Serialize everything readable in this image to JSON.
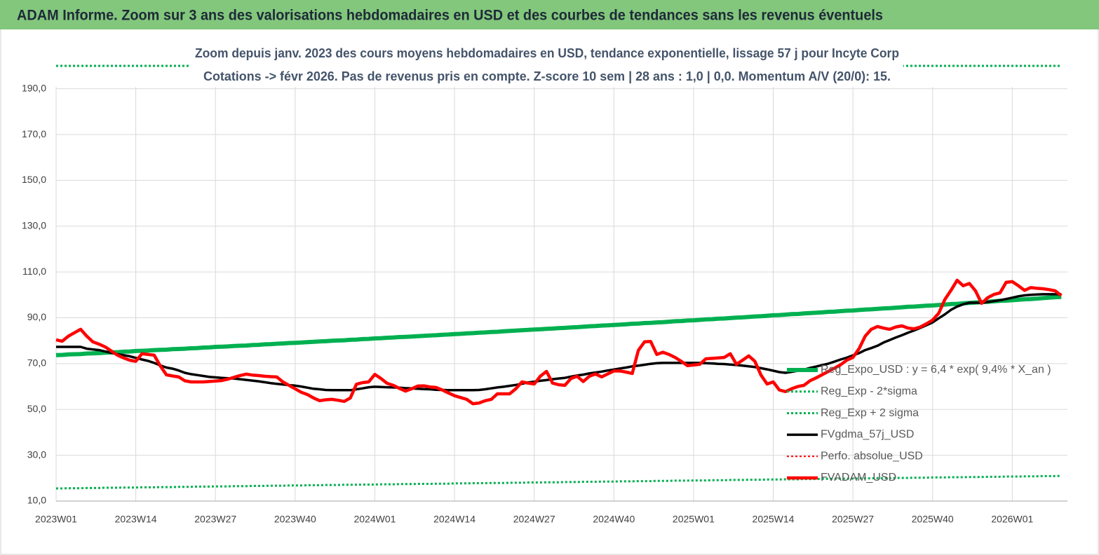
{
  "chart_data": {
    "type": "line",
    "title": "ADAM Informe. Zoom sur 3 ans des valorisations hebdomadaires en USD et des courbes de tendances sans les revenus éventuels",
    "subtitle": [
      "Zoom depuis janv. 2023 des cours moyens hebdomadaires en USD, tendance exponentielle, lissage 57 j pour Incyte Corp",
      "Cotations -> févr 2026.  Pas de revenus pris en compte. Z-score 10 sem  | 28 ans : 1,0 | 0,0. Momentum A/V (20/0): 15."
    ],
    "ylim": [
      10,
      200
    ],
    "yticks": [
      {
        "value": 10,
        "label": "10,0"
      },
      {
        "value": 30,
        "label": "30,0"
      },
      {
        "value": 50,
        "label": "50,0"
      },
      {
        "value": 70,
        "label": "70,0"
      },
      {
        "value": 90,
        "label": "90,0"
      },
      {
        "value": 110,
        "label": "110,0"
      },
      {
        "value": 130,
        "label": "130,0"
      },
      {
        "value": 150,
        "label": "150,0"
      },
      {
        "value": 170,
        "label": "170,0"
      },
      {
        "value": 190,
        "label": "190,0"
      }
    ],
    "grid": true,
    "legend": "lower right",
    "categories": [
      "2023W01",
      null,
      null,
      null,
      null,
      null,
      null,
      null,
      null,
      null,
      null,
      null,
      null,
      "2023W14",
      null,
      null,
      null,
      null,
      null,
      null,
      null,
      null,
      null,
      null,
      null,
      null,
      "2023W27",
      null,
      null,
      null,
      null,
      null,
      null,
      null,
      null,
      null,
      null,
      null,
      null,
      "2023W40",
      null,
      null,
      null,
      null,
      null,
      null,
      null,
      null,
      null,
      null,
      null,
      null,
      "2024W01",
      null,
      null,
      null,
      null,
      null,
      null,
      null,
      null,
      null,
      null,
      null,
      null,
      "2024W14",
      null,
      null,
      null,
      null,
      null,
      null,
      null,
      null,
      null,
      null,
      null,
      null,
      "2024W27",
      null,
      null,
      null,
      null,
      null,
      null,
      null,
      null,
      null,
      null,
      null,
      null,
      "2024W40",
      null,
      null,
      null,
      null,
      null,
      null,
      null,
      null,
      null,
      null,
      null,
      null,
      "2025W01",
      null,
      null,
      null,
      null,
      null,
      null,
      null,
      null,
      null,
      null,
      null,
      null,
      "2025W14",
      null,
      null,
      null,
      null,
      null,
      null,
      null,
      null,
      null,
      null,
      null,
      null,
      "2025W27",
      null,
      null,
      null,
      null,
      null,
      null,
      null,
      null,
      null,
      null,
      null,
      null,
      "2025W40",
      null,
      null,
      null,
      null,
      null,
      null,
      null,
      null,
      null,
      null,
      null,
      null,
      "2026W01",
      null,
      null,
      null,
      null,
      null,
      null,
      null,
      null
    ],
    "series": [
      {
        "name": "Reg_Expo_USD : y = 6,4 * exp( 9,4% * X_an )",
        "color": "#00b050",
        "width": 6,
        "dash": false,
        "values": [
          73.7,
          73.8,
          74.0,
          74.1,
          74.2,
          74.4,
          74.5,
          74.6,
          74.8,
          74.9,
          75.0,
          75.2,
          75.3,
          75.5,
          75.6,
          75.7,
          75.9,
          76.0,
          76.1,
          76.3,
          76.4,
          76.5,
          76.7,
          76.8,
          77.0,
          77.1,
          77.3,
          77.4,
          77.5,
          77.7,
          77.8,
          77.9,
          78.1,
          78.2,
          78.4,
          78.5,
          78.7,
          78.8,
          79.0,
          79.1,
          79.2,
          79.4,
          79.5,
          79.7,
          79.8,
          80.0,
          80.1,
          80.2,
          80.4,
          80.5,
          80.7,
          80.8,
          81.0,
          81.1,
          81.3,
          81.4,
          81.6,
          81.7,
          81.8,
          82.0,
          82.1,
          82.3,
          82.4,
          82.6,
          82.7,
          82.9,
          83.0,
          83.2,
          83.3,
          83.5,
          83.6,
          83.8,
          83.9,
          84.1,
          84.3,
          84.4,
          84.6,
          84.7,
          84.9,
          85.0,
          85.2,
          85.3,
          85.5,
          85.6,
          85.8,
          85.9,
          86.1,
          86.3,
          86.4,
          86.6,
          86.7,
          86.9,
          87.0,
          87.2,
          87.4,
          87.5,
          87.7,
          87.8,
          88.0,
          88.1,
          88.3,
          88.5,
          88.6,
          88.8,
          88.9,
          89.1,
          89.3,
          89.4,
          89.6,
          89.7,
          89.9,
          90.1,
          90.2,
          90.4,
          90.6,
          90.7,
          90.9,
          91.1,
          91.2,
          91.4,
          91.6,
          91.7,
          91.9,
          92.1,
          92.2,
          92.4,
          92.6,
          92.7,
          92.9,
          93.1,
          93.2,
          93.4,
          93.6,
          93.7,
          93.9,
          94.1,
          94.2,
          94.4,
          94.6,
          94.8,
          94.9,
          95.1,
          95.3,
          95.4,
          95.6,
          95.8,
          96.0,
          96.1,
          96.3,
          96.5,
          96.7,
          96.8,
          97.0,
          97.2,
          97.4,
          97.5,
          97.7,
          97.9,
          98.1,
          98.2,
          98.4,
          98.6,
          98.8,
          99.0,
          99.1
        ]
      },
      {
        "name": "Reg_Exp - 2*sigma",
        "color": "#00b050",
        "width": 3,
        "dash": true,
        "values": [
          15.5,
          15.5,
          15.6,
          15.6,
          15.6,
          15.7,
          15.7,
          15.7,
          15.8,
          15.8,
          15.8,
          15.9,
          15.9,
          15.9,
          16.0,
          16.0,
          16.0,
          16.1,
          16.1,
          16.1,
          16.2,
          16.2,
          16.2,
          16.3,
          16.3,
          16.3,
          16.4,
          16.4,
          16.4,
          16.5,
          16.5,
          16.5,
          16.6,
          16.6,
          16.6,
          16.7,
          16.7,
          16.7,
          16.8,
          16.8,
          16.8,
          16.9,
          16.9,
          16.9,
          17.0,
          17.0,
          17.0,
          17.1,
          17.1,
          17.1,
          17.2,
          17.2,
          17.2,
          17.3,
          17.3,
          17.3,
          17.4,
          17.4,
          17.4,
          17.5,
          17.5,
          17.5,
          17.6,
          17.6,
          17.6,
          17.7,
          17.7,
          17.7,
          17.8,
          17.8,
          17.8,
          17.9,
          17.9,
          17.9,
          18.0,
          18.0,
          18.0,
          18.1,
          18.1,
          18.1,
          18.2,
          18.2,
          18.2,
          18.3,
          18.3,
          18.3,
          18.4,
          18.4,
          18.4,
          18.5,
          18.5,
          18.5,
          18.6,
          18.6,
          18.6,
          18.7,
          18.7,
          18.7,
          18.8,
          18.8,
          18.8,
          18.9,
          18.9,
          18.9,
          19.0,
          19.0,
          19.0,
          19.1,
          19.1,
          19.1,
          19.2,
          19.2,
          19.2,
          19.3,
          19.3,
          19.3,
          19.4,
          19.4,
          19.4,
          19.5,
          19.5,
          19.5,
          19.6,
          19.6,
          19.6,
          19.7,
          19.7,
          19.7,
          19.8,
          19.8,
          19.8,
          19.9,
          19.9,
          19.9,
          20.0,
          20.0,
          20.0,
          20.1,
          20.1,
          20.1,
          20.2,
          20.2,
          20.2,
          20.3,
          20.3,
          20.3,
          20.4,
          20.4,
          20.4,
          20.5,
          20.5,
          20.5,
          20.6,
          20.6,
          20.6,
          20.7,
          20.7,
          20.7,
          20.8,
          20.8,
          20.8,
          20.9,
          20.9,
          20.9,
          21.0
        ]
      },
      {
        "name": "Reg_Exp + 2 sigma",
        "color": "#00b050",
        "width": 3,
        "dash": true,
        "values": [
          200,
          200,
          200,
          200,
          200,
          200,
          200,
          200,
          200,
          200,
          200,
          200,
          200,
          200,
          200,
          200,
          200,
          200,
          200,
          200,
          200,
          200,
          200,
          200,
          200,
          200,
          200,
          200,
          200,
          200,
          200,
          200,
          200,
          200,
          200,
          200,
          200,
          200,
          200,
          200,
          200,
          200,
          200,
          200,
          200,
          200,
          200,
          200,
          200,
          200,
          200,
          200,
          200,
          200,
          200,
          200,
          200,
          200,
          200,
          200,
          200,
          200,
          200,
          200,
          200,
          200,
          200,
          200,
          200,
          200,
          200,
          200,
          200,
          200,
          200,
          200,
          200,
          200,
          200,
          200,
          200,
          200,
          200,
          200,
          200,
          200,
          200,
          200,
          200,
          200,
          200,
          200,
          200,
          200,
          200,
          200,
          200,
          200,
          200,
          200,
          200,
          200,
          200,
          200,
          200,
          200,
          200,
          200,
          200,
          200,
          200,
          200,
          200,
          200,
          200,
          200,
          200,
          200,
          200,
          200,
          200,
          200,
          200,
          200,
          200,
          200,
          200,
          200,
          200,
          200,
          200,
          200,
          200,
          200,
          200,
          200,
          200,
          200,
          200,
          200,
          200,
          200,
          200,
          200,
          200,
          200,
          200,
          200,
          200,
          200,
          200,
          200,
          200,
          200,
          200,
          200,
          200,
          200,
          200,
          200,
          200,
          200,
          200,
          200,
          200
        ]
      },
      {
        "name": "FVgdma_57j_USD",
        "color": "#000000",
        "width": 3.5,
        "dash": false,
        "values": [
          77.3,
          77.3,
          77.3,
          77.3,
          77.3,
          76.5,
          76.2,
          75.9,
          75.3,
          74.7,
          74.1,
          73.7,
          73.2,
          72.5,
          71.8,
          71.2,
          70.3,
          69.2,
          68.3,
          67.8,
          67,
          66,
          65.4,
          65,
          64.6,
          64.2,
          64,
          63.8,
          63.6,
          63.5,
          63.2,
          62.9,
          62.6,
          62.3,
          61.9,
          61.5,
          61.2,
          60.9,
          60.6,
          60.4,
          60,
          59.5,
          59,
          58.8,
          58.5,
          58.4,
          58.4,
          58.4,
          58.4,
          58.8,
          59.2,
          59.7,
          59.9,
          59.8,
          59.7,
          59.6,
          59.5,
          59.3,
          59.2,
          59,
          58.9,
          58.8,
          58.6,
          58.5,
          58.4,
          58.4,
          58.4,
          58.4,
          58.4,
          58.5,
          58.8,
          59.2,
          59.6,
          59.9,
          60.3,
          60.7,
          61.2,
          61.8,
          62.1,
          62.5,
          62.8,
          63.2,
          63.5,
          63.8,
          64.3,
          64.8,
          65.2,
          65.7,
          66.1,
          66.5,
          67,
          67.4,
          67.9,
          68.3,
          68.8,
          69.1,
          69.5,
          69.9,
          70.2,
          70.3,
          70.3,
          70.3,
          70.3,
          70.3,
          70.3,
          70.3,
          70.2,
          70.1,
          69.9,
          69.8,
          69.6,
          69.4,
          69.1,
          68.8,
          68.5,
          68,
          67.5,
          66.9,
          66.3,
          66,
          66.4,
          66.9,
          67.4,
          68.1,
          68.7,
          69.4,
          70,
          70.9,
          71.8,
          72.6,
          73.6,
          74.6,
          75.9,
          76.8,
          77.8,
          79.2,
          80.3,
          81.4,
          82.4,
          83.5,
          84.5,
          85.6,
          86.8,
          88,
          89.8,
          91.5,
          93.5,
          94.9,
          95.9,
          96.6,
          96.6,
          96.6,
          96.9,
          97.3,
          97.7,
          98.2,
          98.8,
          99.4,
          99.8,
          100,
          100.2,
          100.3,
          100.3,
          100.3,
          100.3
        ]
      },
      {
        "name": "Perfo. absolue_USD",
        "color": "#ff0000",
        "width": 2,
        "dash": true,
        "values": [
          null,
          null,
          null,
          null,
          null,
          null,
          null,
          null,
          null,
          null,
          null,
          null,
          null,
          null,
          null,
          null,
          null,
          null,
          null,
          null,
          null,
          null,
          null,
          null,
          null,
          null,
          null,
          null,
          null,
          null,
          null,
          null,
          null,
          null,
          null,
          null,
          null,
          null,
          null,
          null,
          null,
          null,
          null,
          null,
          null,
          null,
          null,
          null,
          null,
          null,
          null,
          null,
          null,
          null,
          null,
          null,
          null,
          null,
          null,
          null,
          null,
          null,
          null,
          null,
          null,
          null,
          null,
          null,
          null,
          null,
          null,
          null,
          null,
          null,
          null,
          null,
          null,
          null,
          null,
          null,
          null,
          null,
          null,
          null,
          null,
          null,
          null,
          null,
          null,
          null,
          null,
          null,
          null,
          null,
          null,
          null,
          null,
          null,
          null,
          null,
          null,
          null,
          null,
          null,
          null,
          null,
          null,
          null,
          null,
          null,
          null,
          null,
          null,
          null,
          null,
          null,
          null,
          null,
          null,
          null,
          null,
          null,
          null,
          null,
          null,
          null,
          null,
          null,
          null,
          null,
          null,
          null,
          null,
          null,
          null,
          null,
          null,
          null,
          null,
          null,
          null,
          null,
          null,
          null,
          null,
          null,
          null,
          null,
          null,
          null,
          null,
          null,
          null,
          null,
          null,
          null,
          null,
          null,
          null,
          null,
          null,
          null,
          null,
          null,
          null
        ]
      },
      {
        "name": "FVADAM_USD",
        "color": "#ff0000",
        "width": 4.5,
        "dash": false,
        "values": [
          80.4,
          79.8,
          82,
          83.5,
          85,
          82,
          79.5,
          78.5,
          77.3,
          75.5,
          73.7,
          72.5,
          71.5,
          71,
          74.3,
          74,
          73.7,
          69,
          65.1,
          64.6,
          64.2,
          62.5,
          62,
          62,
          62,
          62.2,
          62.4,
          62.6,
          63.2,
          64,
          64.8,
          65.4,
          65,
          64.8,
          64.5,
          64.3,
          64.2,
          62,
          60.5,
          59,
          57.5,
          56.5,
          55,
          53.8,
          54.2,
          54.4,
          54,
          53.5,
          55,
          61,
          61.7,
          62,
          65.3,
          63.5,
          61.4,
          60.5,
          59.2,
          58,
          59,
          60.2,
          60.3,
          59.8,
          59.6,
          58.5,
          57.2,
          56,
          55.2,
          54.4,
          52.5,
          52.8,
          53.8,
          54.4,
          56.8,
          56.8,
          56.8,
          59,
          62,
          61.5,
          61.1,
          64.5,
          66.6,
          61.5,
          60.8,
          60.5,
          63.5,
          64.5,
          62.2,
          64.5,
          65.5,
          64.2,
          65.5,
          66.8,
          66.8,
          66.3,
          65.7,
          75.8,
          79.5,
          79.7,
          74,
          75,
          74,
          72.7,
          71,
          69.1,
          69.4,
          69.7,
          72.1,
          72.3,
          72.5,
          72.7,
          74.3,
          69.7,
          71.5,
          73.4,
          71,
          65,
          61.1,
          62,
          58.5,
          57.8,
          59,
          60,
          60.5,
          62.5,
          63.8,
          65.2,
          66.6,
          68,
          69.5,
          71.5,
          72.7,
          76.5,
          82,
          85,
          86.2,
          85.5,
          85,
          86,
          86.5,
          85.5,
          85.2,
          86,
          87.4,
          89,
          92,
          98,
          102,
          106.4,
          104,
          105,
          101.8,
          96.3,
          98.8,
          100.2,
          100.9,
          105.5,
          105.8,
          104,
          102,
          103.2,
          102.9,
          102.7,
          102.3,
          101.8,
          99.7
        ]
      }
    ]
  }
}
